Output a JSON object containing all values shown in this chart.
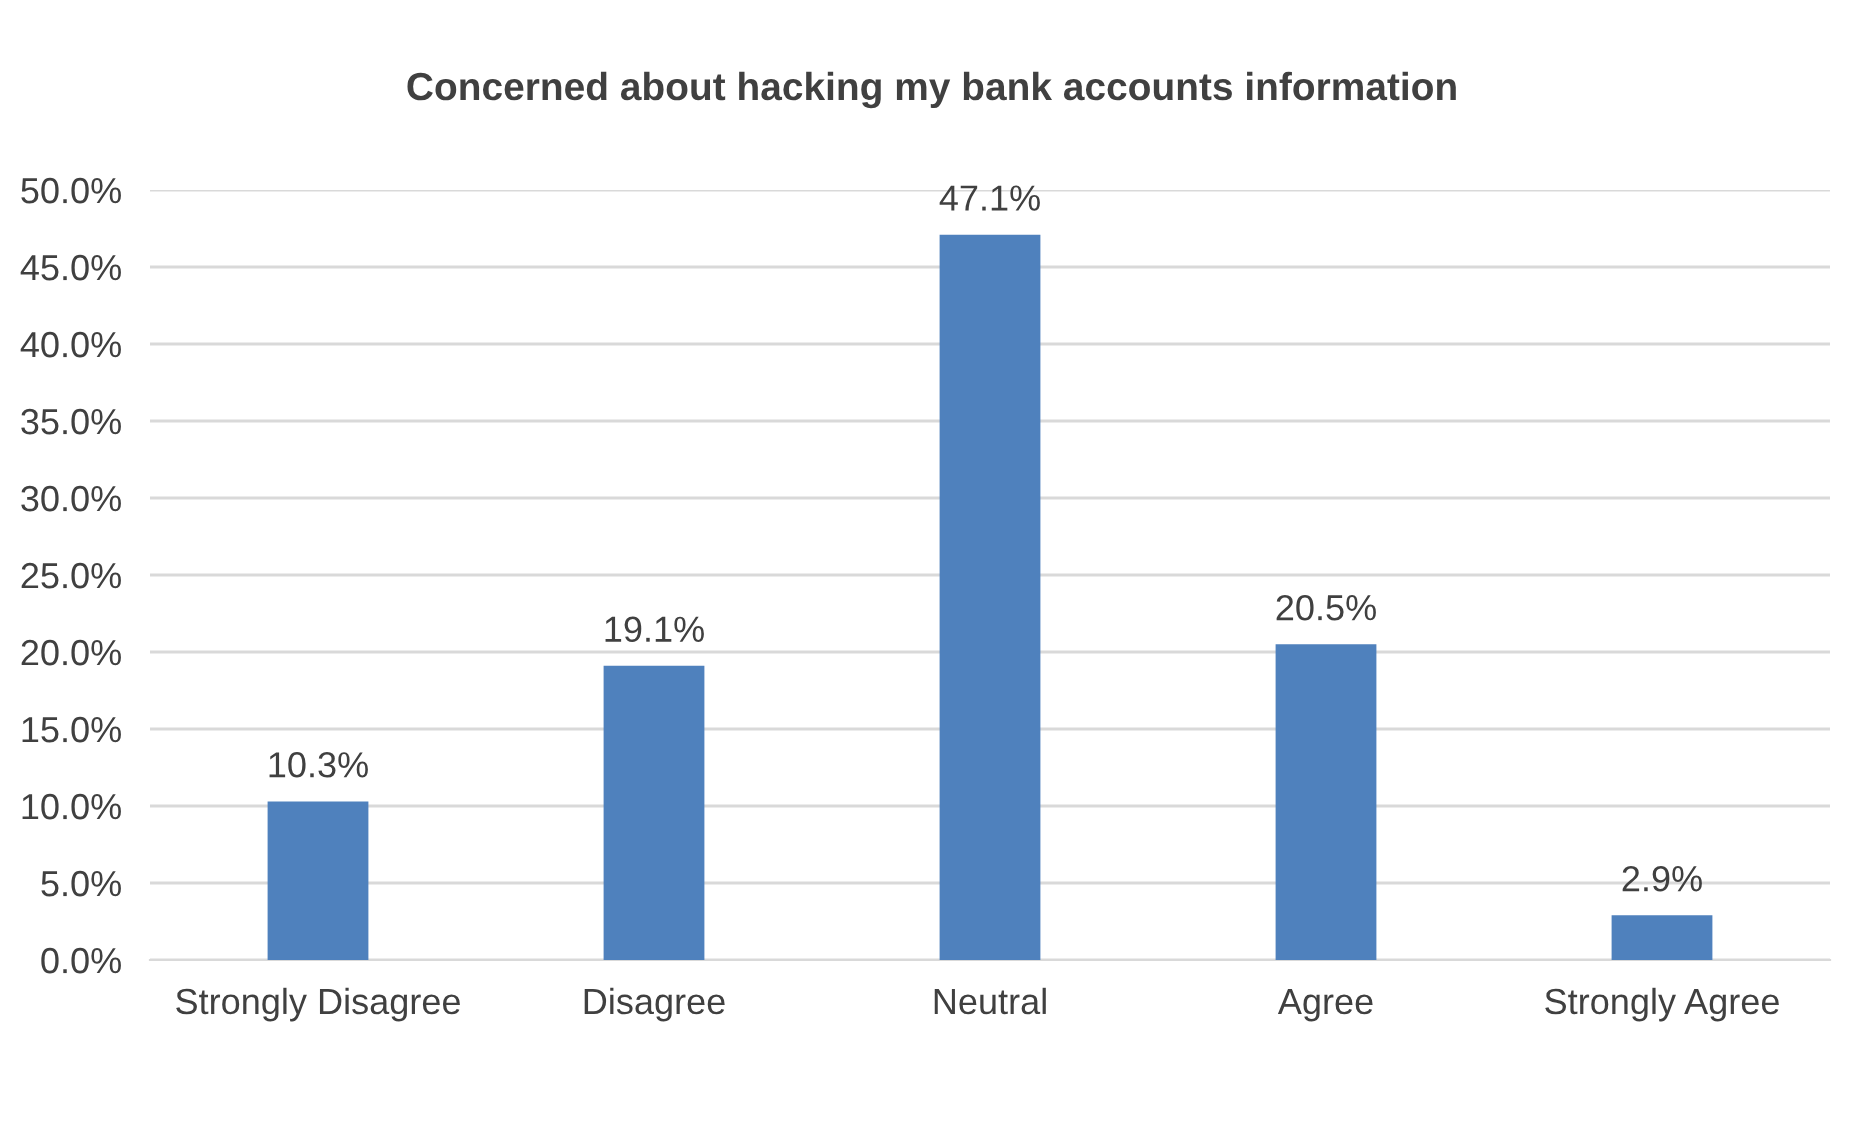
{
  "chart_data": {
    "type": "bar",
    "title": "Concerned about hacking my bank accounts information",
    "categories": [
      "Strongly Disagree",
      "Disagree",
      "Neutral",
      "Agree",
      "Strongly Agree"
    ],
    "series": [
      {
        "color": "#4f81bd",
        "values": [
          10.3,
          19.1,
          47.1,
          20.5,
          2.9
        ]
      }
    ],
    "value_labels": [
      "10.3%",
      "19.1%",
      "47.1%",
      "20.5%",
      "2.9%"
    ],
    "ylim": [
      0,
      50
    ],
    "yticks": [
      {
        "value": 0,
        "label": "0.0%"
      },
      {
        "value": 5,
        "label": "5.0%"
      },
      {
        "value": 10,
        "label": "10.0%"
      },
      {
        "value": 15,
        "label": "15.0%"
      },
      {
        "value": 20,
        "label": "20.0%"
      },
      {
        "value": 25,
        "label": "25.0%"
      },
      {
        "value": 30,
        "label": "30.0%"
      },
      {
        "value": 35,
        "label": "35.0%"
      },
      {
        "value": 40,
        "label": "40.0%"
      },
      {
        "value": 45,
        "label": "45.0%"
      },
      {
        "value": 50,
        "label": "50.0%"
      }
    ],
    "grid": "y",
    "legend": false
  }
}
